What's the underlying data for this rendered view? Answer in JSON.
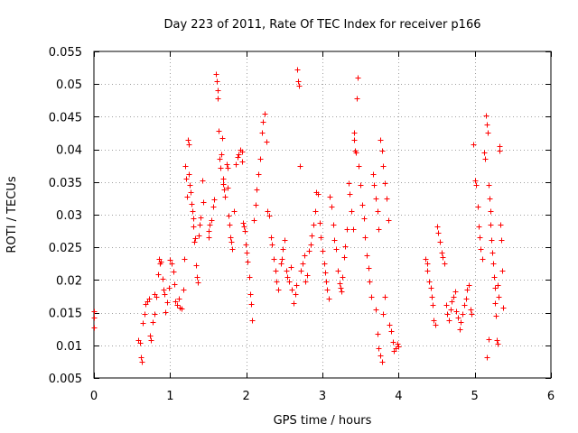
{
  "chart_data": {
    "type": "scatter",
    "title": "Day 223 of 2011, Rate Of TEC Index for receiver p166",
    "xlabel": "GPS time / hours",
    "ylabel": "ROTI / TECUs",
    "xlim": [
      0,
      6
    ],
    "ylim": [
      0.005,
      0.055
    ],
    "x_ticks": [
      0,
      1,
      2,
      3,
      4,
      5,
      6
    ],
    "x_tick_labels": [
      "0",
      "1",
      "2",
      "3",
      "4",
      "5",
      "6"
    ],
    "y_ticks": [
      0.005,
      0.01,
      0.015,
      0.02,
      0.025,
      0.03,
      0.035,
      0.04,
      0.045,
      0.05,
      0.055
    ],
    "y_tick_labels": [
      "0.005",
      "0.01",
      "0.015",
      "0.02",
      "0.025",
      "0.03",
      "0.035",
      "0.04",
      "0.045",
      "0.05",
      "0.055"
    ],
    "grid": true,
    "marker": "+",
    "color": "#ff0000",
    "series": [
      {
        "name": "ROTI",
        "points": [
          [
            0.0,
            0.0152
          ],
          [
            0.0,
            0.0143
          ],
          [
            0.0,
            0.0127
          ],
          [
            0.58,
            0.0108
          ],
          [
            0.6,
            0.0104
          ],
          [
            0.62,
            0.0082
          ],
          [
            0.63,
            0.0075
          ],
          [
            0.64,
            0.0134
          ],
          [
            0.66,
            0.0148
          ],
          [
            0.68,
            0.0163
          ],
          [
            0.7,
            0.0168
          ],
          [
            0.72,
            0.0172
          ],
          [
            0.74,
            0.0115
          ],
          [
            0.75,
            0.0108
          ],
          [
            0.77,
            0.0135
          ],
          [
            0.79,
            0.0148
          ],
          [
            0.8,
            0.0178
          ],
          [
            0.82,
            0.0174
          ],
          [
            0.84,
            0.0209
          ],
          [
            0.85,
            0.0232
          ],
          [
            0.87,
            0.0226
          ],
          [
            0.88,
            0.0228
          ],
          [
            0.9,
            0.0202
          ],
          [
            0.91,
            0.0186
          ],
          [
            0.92,
            0.0178
          ],
          [
            0.94,
            0.0151
          ],
          [
            0.96,
            0.0166
          ],
          [
            0.98,
            0.0188
          ],
          [
            1.0,
            0.0231
          ],
          [
            1.02,
            0.0226
          ],
          [
            1.04,
            0.0213
          ],
          [
            1.05,
            0.0193
          ],
          [
            1.07,
            0.0168
          ],
          [
            1.09,
            0.0162
          ],
          [
            1.11,
            0.0172
          ],
          [
            1.13,
            0.0158
          ],
          [
            1.15,
            0.0156
          ],
          [
            1.17,
            0.0185
          ],
          [
            1.18,
            0.0232
          ],
          [
            1.2,
            0.0375
          ],
          [
            1.21,
            0.0355
          ],
          [
            1.22,
            0.0328
          ],
          [
            1.23,
            0.0415
          ],
          [
            1.24,
            0.0408
          ],
          [
            1.25,
            0.0362
          ],
          [
            1.26,
            0.0346
          ],
          [
            1.27,
            0.0335
          ],
          [
            1.28,
            0.0317
          ],
          [
            1.29,
            0.0305
          ],
          [
            1.3,
            0.0295
          ],
          [
            1.31,
            0.0282
          ],
          [
            1.32,
            0.0258
          ],
          [
            1.33,
            0.0264
          ],
          [
            1.34,
            0.0222
          ],
          [
            1.35,
            0.0205
          ],
          [
            1.36,
            0.0197
          ],
          [
            1.38,
            0.0268
          ],
          [
            1.39,
            0.0285
          ],
          [
            1.4,
            0.0296
          ],
          [
            1.42,
            0.0352
          ],
          [
            1.44,
            0.032
          ],
          [
            1.5,
            0.0265
          ],
          [
            1.51,
            0.0275
          ],
          [
            1.52,
            0.0285
          ],
          [
            1.54,
            0.0292
          ],
          [
            1.56,
            0.0312
          ],
          [
            1.58,
            0.0323
          ],
          [
            1.6,
            0.0515
          ],
          [
            1.61,
            0.0505
          ],
          [
            1.62,
            0.049
          ],
          [
            1.63,
            0.0478
          ],
          [
            1.64,
            0.0428
          ],
          [
            1.65,
            0.0385
          ],
          [
            1.66,
            0.0372
          ],
          [
            1.67,
            0.0392
          ],
          [
            1.68,
            0.0418
          ],
          [
            1.69,
            0.0355
          ],
          [
            1.7,
            0.0347
          ],
          [
            1.71,
            0.0338
          ],
          [
            1.72,
            0.0328
          ],
          [
            1.74,
            0.0378
          ],
          [
            1.75,
            0.0372
          ],
          [
            1.76,
            0.0342
          ],
          [
            1.77,
            0.0298
          ],
          [
            1.78,
            0.0285
          ],
          [
            1.79,
            0.0265
          ],
          [
            1.8,
            0.0258
          ],
          [
            1.82,
            0.0248
          ],
          [
            1.84,
            0.0305
          ],
          [
            1.86,
            0.0378
          ],
          [
            1.88,
            0.0388
          ],
          [
            1.9,
            0.0392
          ],
          [
            1.92,
            0.04
          ],
          [
            1.94,
            0.0396
          ],
          [
            1.95,
            0.0382
          ],
          [
            1.96,
            0.0288
          ],
          [
            1.97,
            0.0282
          ],
          [
            1.98,
            0.0275
          ],
          [
            1.99,
            0.0255
          ],
          [
            2.0,
            0.0242
          ],
          [
            2.02,
            0.0228
          ],
          [
            2.04,
            0.0205
          ],
          [
            2.05,
            0.0178
          ],
          [
            2.06,
            0.0163
          ],
          [
            2.08,
            0.0138
          ],
          [
            2.1,
            0.0292
          ],
          [
            2.12,
            0.0315
          ],
          [
            2.14,
            0.0338
          ],
          [
            2.16,
            0.0362
          ],
          [
            2.18,
            0.0385
          ],
          [
            2.2,
            0.0425
          ],
          [
            2.22,
            0.0442
          ],
          [
            2.24,
            0.0455
          ],
          [
            2.26,
            0.0412
          ],
          [
            2.28,
            0.0305
          ],
          [
            2.3,
            0.0298
          ],
          [
            2.32,
            0.0265
          ],
          [
            2.34,
            0.0254
          ],
          [
            2.36,
            0.0232
          ],
          [
            2.38,
            0.0215
          ],
          [
            2.4,
            0.0198
          ],
          [
            2.42,
            0.0185
          ],
          [
            2.45,
            0.0225
          ],
          [
            2.47,
            0.0232
          ],
          [
            2.48,
            0.0248
          ],
          [
            2.5,
            0.0262
          ],
          [
            2.52,
            0.0215
          ],
          [
            2.54,
            0.0205
          ],
          [
            2.56,
            0.0198
          ],
          [
            2.58,
            0.022
          ],
          [
            2.6,
            0.0185
          ],
          [
            2.62,
            0.0165
          ],
          [
            2.64,
            0.0178
          ],
          [
            2.66,
            0.0192
          ],
          [
            2.67,
            0.0522
          ],
          [
            2.68,
            0.0505
          ],
          [
            2.69,
            0.0498
          ],
          [
            2.7,
            0.0375
          ],
          [
            2.72,
            0.0215
          ],
          [
            2.74,
            0.0225
          ],
          [
            2.76,
            0.0238
          ],
          [
            2.78,
            0.0198
          ],
          [
            2.8,
            0.0208
          ],
          [
            2.82,
            0.0245
          ],
          [
            2.84,
            0.0255
          ],
          [
            2.86,
            0.0268
          ],
          [
            2.88,
            0.0285
          ],
          [
            2.9,
            0.0305
          ],
          [
            2.92,
            0.0335
          ],
          [
            2.94,
            0.0332
          ],
          [
            2.96,
            0.0288
          ],
          [
            2.98,
            0.0265
          ],
          [
            3.0,
            0.0245
          ],
          [
            3.02,
            0.0225
          ],
          [
            3.04,
            0.0212
          ],
          [
            3.05,
            0.0198
          ],
          [
            3.06,
            0.0185
          ],
          [
            3.08,
            0.0172
          ],
          [
            3.1,
            0.0328
          ],
          [
            3.12,
            0.0312
          ],
          [
            3.14,
            0.0285
          ],
          [
            3.16,
            0.0262
          ],
          [
            3.18,
            0.0248
          ],
          [
            3.2,
            0.0215
          ],
          [
            3.22,
            0.0195
          ],
          [
            3.24,
            0.0188
          ],
          [
            3.25,
            0.0182
          ],
          [
            3.26,
            0.0205
          ],
          [
            3.28,
            0.0235
          ],
          [
            3.3,
            0.0252
          ],
          [
            3.32,
            0.0278
          ],
          [
            3.34,
            0.0348
          ],
          [
            3.36,
            0.0332
          ],
          [
            3.38,
            0.0305
          ],
          [
            3.4,
            0.0278
          ],
          [
            3.41,
            0.0425
          ],
          [
            3.42,
            0.0415
          ],
          [
            3.43,
            0.0398
          ],
          [
            3.44,
            0.0395
          ],
          [
            3.45,
            0.0478
          ],
          [
            3.46,
            0.051
          ],
          [
            3.48,
            0.0375
          ],
          [
            3.5,
            0.0345
          ],
          [
            3.52,
            0.0315
          ],
          [
            3.54,
            0.0295
          ],
          [
            3.56,
            0.0265
          ],
          [
            3.58,
            0.0238
          ],
          [
            3.6,
            0.0218
          ],
          [
            3.62,
            0.0198
          ],
          [
            3.64,
            0.0175
          ],
          [
            3.66,
            0.0362
          ],
          [
            3.68,
            0.0345
          ],
          [
            3.7,
            0.0325
          ],
          [
            3.72,
            0.0305
          ],
          [
            3.74,
            0.0278
          ],
          [
            3.76,
            0.0415
          ],
          [
            3.78,
            0.0398
          ],
          [
            3.8,
            0.0375
          ],
          [
            3.82,
            0.0348
          ],
          [
            3.84,
            0.0325
          ],
          [
            3.86,
            0.0292
          ],
          [
            3.88,
            0.0132
          ],
          [
            3.9,
            0.0122
          ],
          [
            3.92,
            0.0105
          ],
          [
            3.94,
            0.0092
          ],
          [
            3.96,
            0.0095
          ],
          [
            3.98,
            0.0102
          ],
          [
            4.0,
            0.0098
          ],
          [
            3.7,
            0.0155
          ],
          [
            3.72,
            0.0118
          ],
          [
            3.74,
            0.0096
          ],
          [
            3.76,
            0.0085
          ],
          [
            3.78,
            0.0075
          ],
          [
            3.8,
            0.0148
          ],
          [
            3.82,
            0.0175
          ],
          [
            4.35,
            0.0232
          ],
          [
            4.37,
            0.0225
          ],
          [
            4.38,
            0.0215
          ],
          [
            4.4,
            0.0198
          ],
          [
            4.42,
            0.0188
          ],
          [
            4.44,
            0.0175
          ],
          [
            4.45,
            0.0162
          ],
          [
            4.46,
            0.0138
          ],
          [
            4.48,
            0.0132
          ],
          [
            4.5,
            0.0282
          ],
          [
            4.52,
            0.0272
          ],
          [
            4.54,
            0.0258
          ],
          [
            4.56,
            0.0242
          ],
          [
            4.58,
            0.0235
          ],
          [
            4.6,
            0.0225
          ],
          [
            4.62,
            0.0162
          ],
          [
            4.64,
            0.0148
          ],
          [
            4.66,
            0.0138
          ],
          [
            4.68,
            0.0155
          ],
          [
            4.7,
            0.0168
          ],
          [
            4.72,
            0.0175
          ],
          [
            4.74,
            0.0182
          ],
          [
            4.76,
            0.0152
          ],
          [
            4.78,
            0.0142
          ],
          [
            4.8,
            0.0125
          ],
          [
            4.82,
            0.0135
          ],
          [
            4.84,
            0.0148
          ],
          [
            4.86,
            0.0162
          ],
          [
            4.88,
            0.0172
          ],
          [
            4.9,
            0.0185
          ],
          [
            4.92,
            0.0192
          ],
          [
            4.94,
            0.0155
          ],
          [
            4.96,
            0.0148
          ],
          [
            4.98,
            0.0408
          ],
          [
            5.0,
            0.0352
          ],
          [
            5.02,
            0.0345
          ],
          [
            5.04,
            0.0312
          ],
          [
            5.05,
            0.0282
          ],
          [
            5.06,
            0.0265
          ],
          [
            5.08,
            0.0248
          ],
          [
            5.1,
            0.0232
          ],
          [
            5.12,
            0.0395
          ],
          [
            5.14,
            0.0385
          ],
          [
            5.15,
            0.0452
          ],
          [
            5.16,
            0.0438
          ],
          [
            5.17,
            0.0425
          ],
          [
            5.18,
            0.0345
          ],
          [
            5.19,
            0.0325
          ],
          [
            5.2,
            0.0305
          ],
          [
            5.21,
            0.0285
          ],
          [
            5.22,
            0.0262
          ],
          [
            5.23,
            0.0242
          ],
          [
            5.24,
            0.0225
          ],
          [
            5.25,
            0.0205
          ],
          [
            5.26,
            0.0188
          ],
          [
            5.27,
            0.0165
          ],
          [
            5.28,
            0.0145
          ],
          [
            5.29,
            0.0108
          ],
          [
            5.3,
            0.0102
          ],
          [
            5.16,
            0.0082
          ],
          [
            5.18,
            0.011
          ],
          [
            5.32,
            0.0405
          ],
          [
            5.33,
            0.0398
          ],
          [
            5.34,
            0.0285
          ],
          [
            5.35,
            0.0262
          ],
          [
            5.36,
            0.0215
          ],
          [
            5.37,
            0.0158
          ],
          [
            5.3,
            0.0192
          ],
          [
            5.31,
            0.0175
          ]
        ]
      }
    ]
  }
}
